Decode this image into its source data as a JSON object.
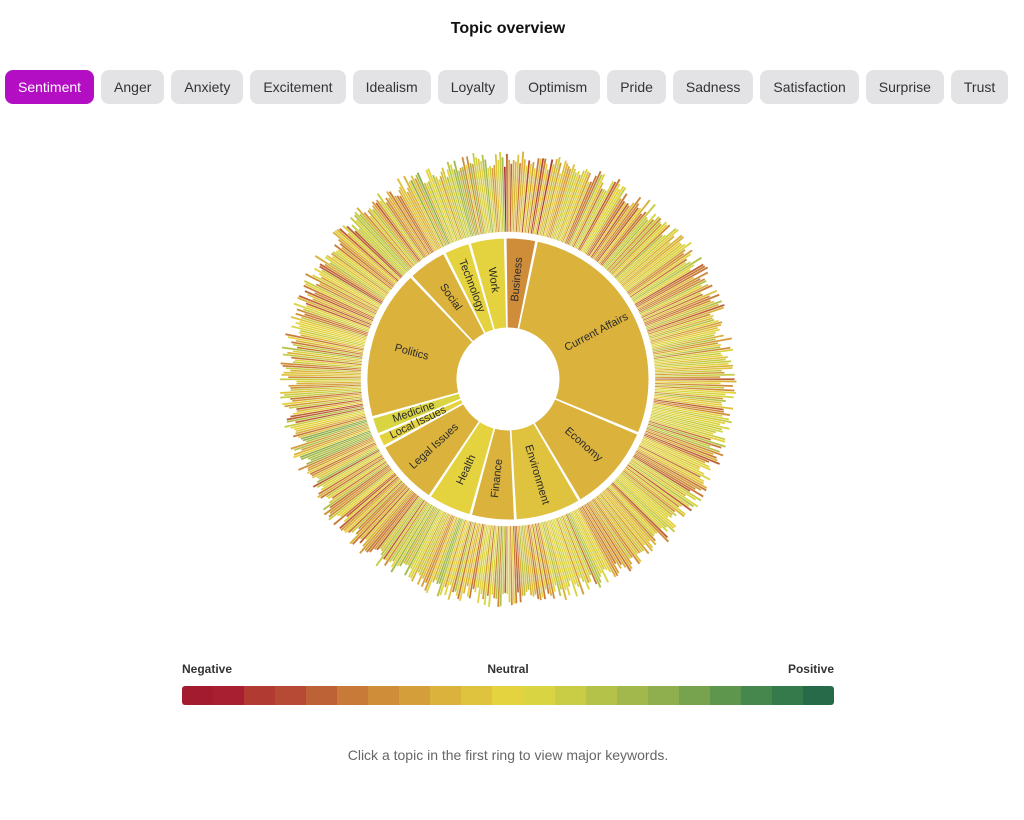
{
  "title": "Topic overview",
  "tabs": [
    {
      "label": "Sentiment",
      "active": true
    },
    {
      "label": "Anger",
      "active": false
    },
    {
      "label": "Anxiety",
      "active": false
    },
    {
      "label": "Excitement",
      "active": false
    },
    {
      "label": "Idealism",
      "active": false
    },
    {
      "label": "Loyalty",
      "active": false
    },
    {
      "label": "Optimism",
      "active": false
    },
    {
      "label": "Pride",
      "active": false
    },
    {
      "label": "Sadness",
      "active": false
    },
    {
      "label": "Satisfaction",
      "active": false
    },
    {
      "label": "Surprise",
      "active": false
    },
    {
      "label": "Trust",
      "active": false
    }
  ],
  "colors": {
    "accent": "#b30ec3",
    "tab_bg": "#e3e3e6",
    "scale": [
      "#a31b2f",
      "#a81f31",
      "#b13a33",
      "#b64a34",
      "#bd6236",
      "#c87a38",
      "#cf8d3a",
      "#d49f3b",
      "#dab23c",
      "#dfc23d",
      "#e4d23e",
      "#d9d441",
      "#c9cc45",
      "#b5c249",
      "#a3b84c",
      "#8fae4e",
      "#77a34f",
      "#5e964e",
      "#45874c",
      "#347a4a",
      "#266a4a"
    ]
  },
  "chart_data": {
    "type": "sunburst",
    "title": "Topic overview",
    "metric": "Sentiment",
    "ring1_topics": [
      {
        "name": "Business",
        "share": 3.5,
        "sentiment": -0.45
      },
      {
        "name": "Current Affairs",
        "share": 27.5,
        "sentiment": -0.2
      },
      {
        "name": "Economy",
        "share": 10.0,
        "sentiment": -0.2
      },
      {
        "name": "Environment",
        "share": 7.5,
        "sentiment": -0.15
      },
      {
        "name": "Finance",
        "share": 5.0,
        "sentiment": -0.2
      },
      {
        "name": "Health",
        "share": 5.0,
        "sentiment": 0.0
      },
      {
        "name": "Legal Issues",
        "share": 7.5,
        "sentiment": -0.2
      },
      {
        "name": "Local Issues",
        "share": 1.5,
        "sentiment": -0.05
      },
      {
        "name": "Medicine",
        "share": 2.0,
        "sentiment": 0.1
      },
      {
        "name": "Politics",
        "share": 17.0,
        "sentiment": -0.2
      },
      {
        "name": "Social",
        "share": 4.5,
        "sentiment": -0.2
      },
      {
        "name": "Technology",
        "share": 3.0,
        "sentiment": 0.0
      },
      {
        "name": "Work",
        "share": 4.0,
        "sentiment": 0.0
      }
    ],
    "ring2": "major keywords per topic (many thin segments colored by sentiment)",
    "legend": {
      "negative_label": "Negative",
      "neutral_label": "Neutral",
      "positive_label": "Positive"
    }
  },
  "hint": "Click a topic in the first ring to view major keywords."
}
